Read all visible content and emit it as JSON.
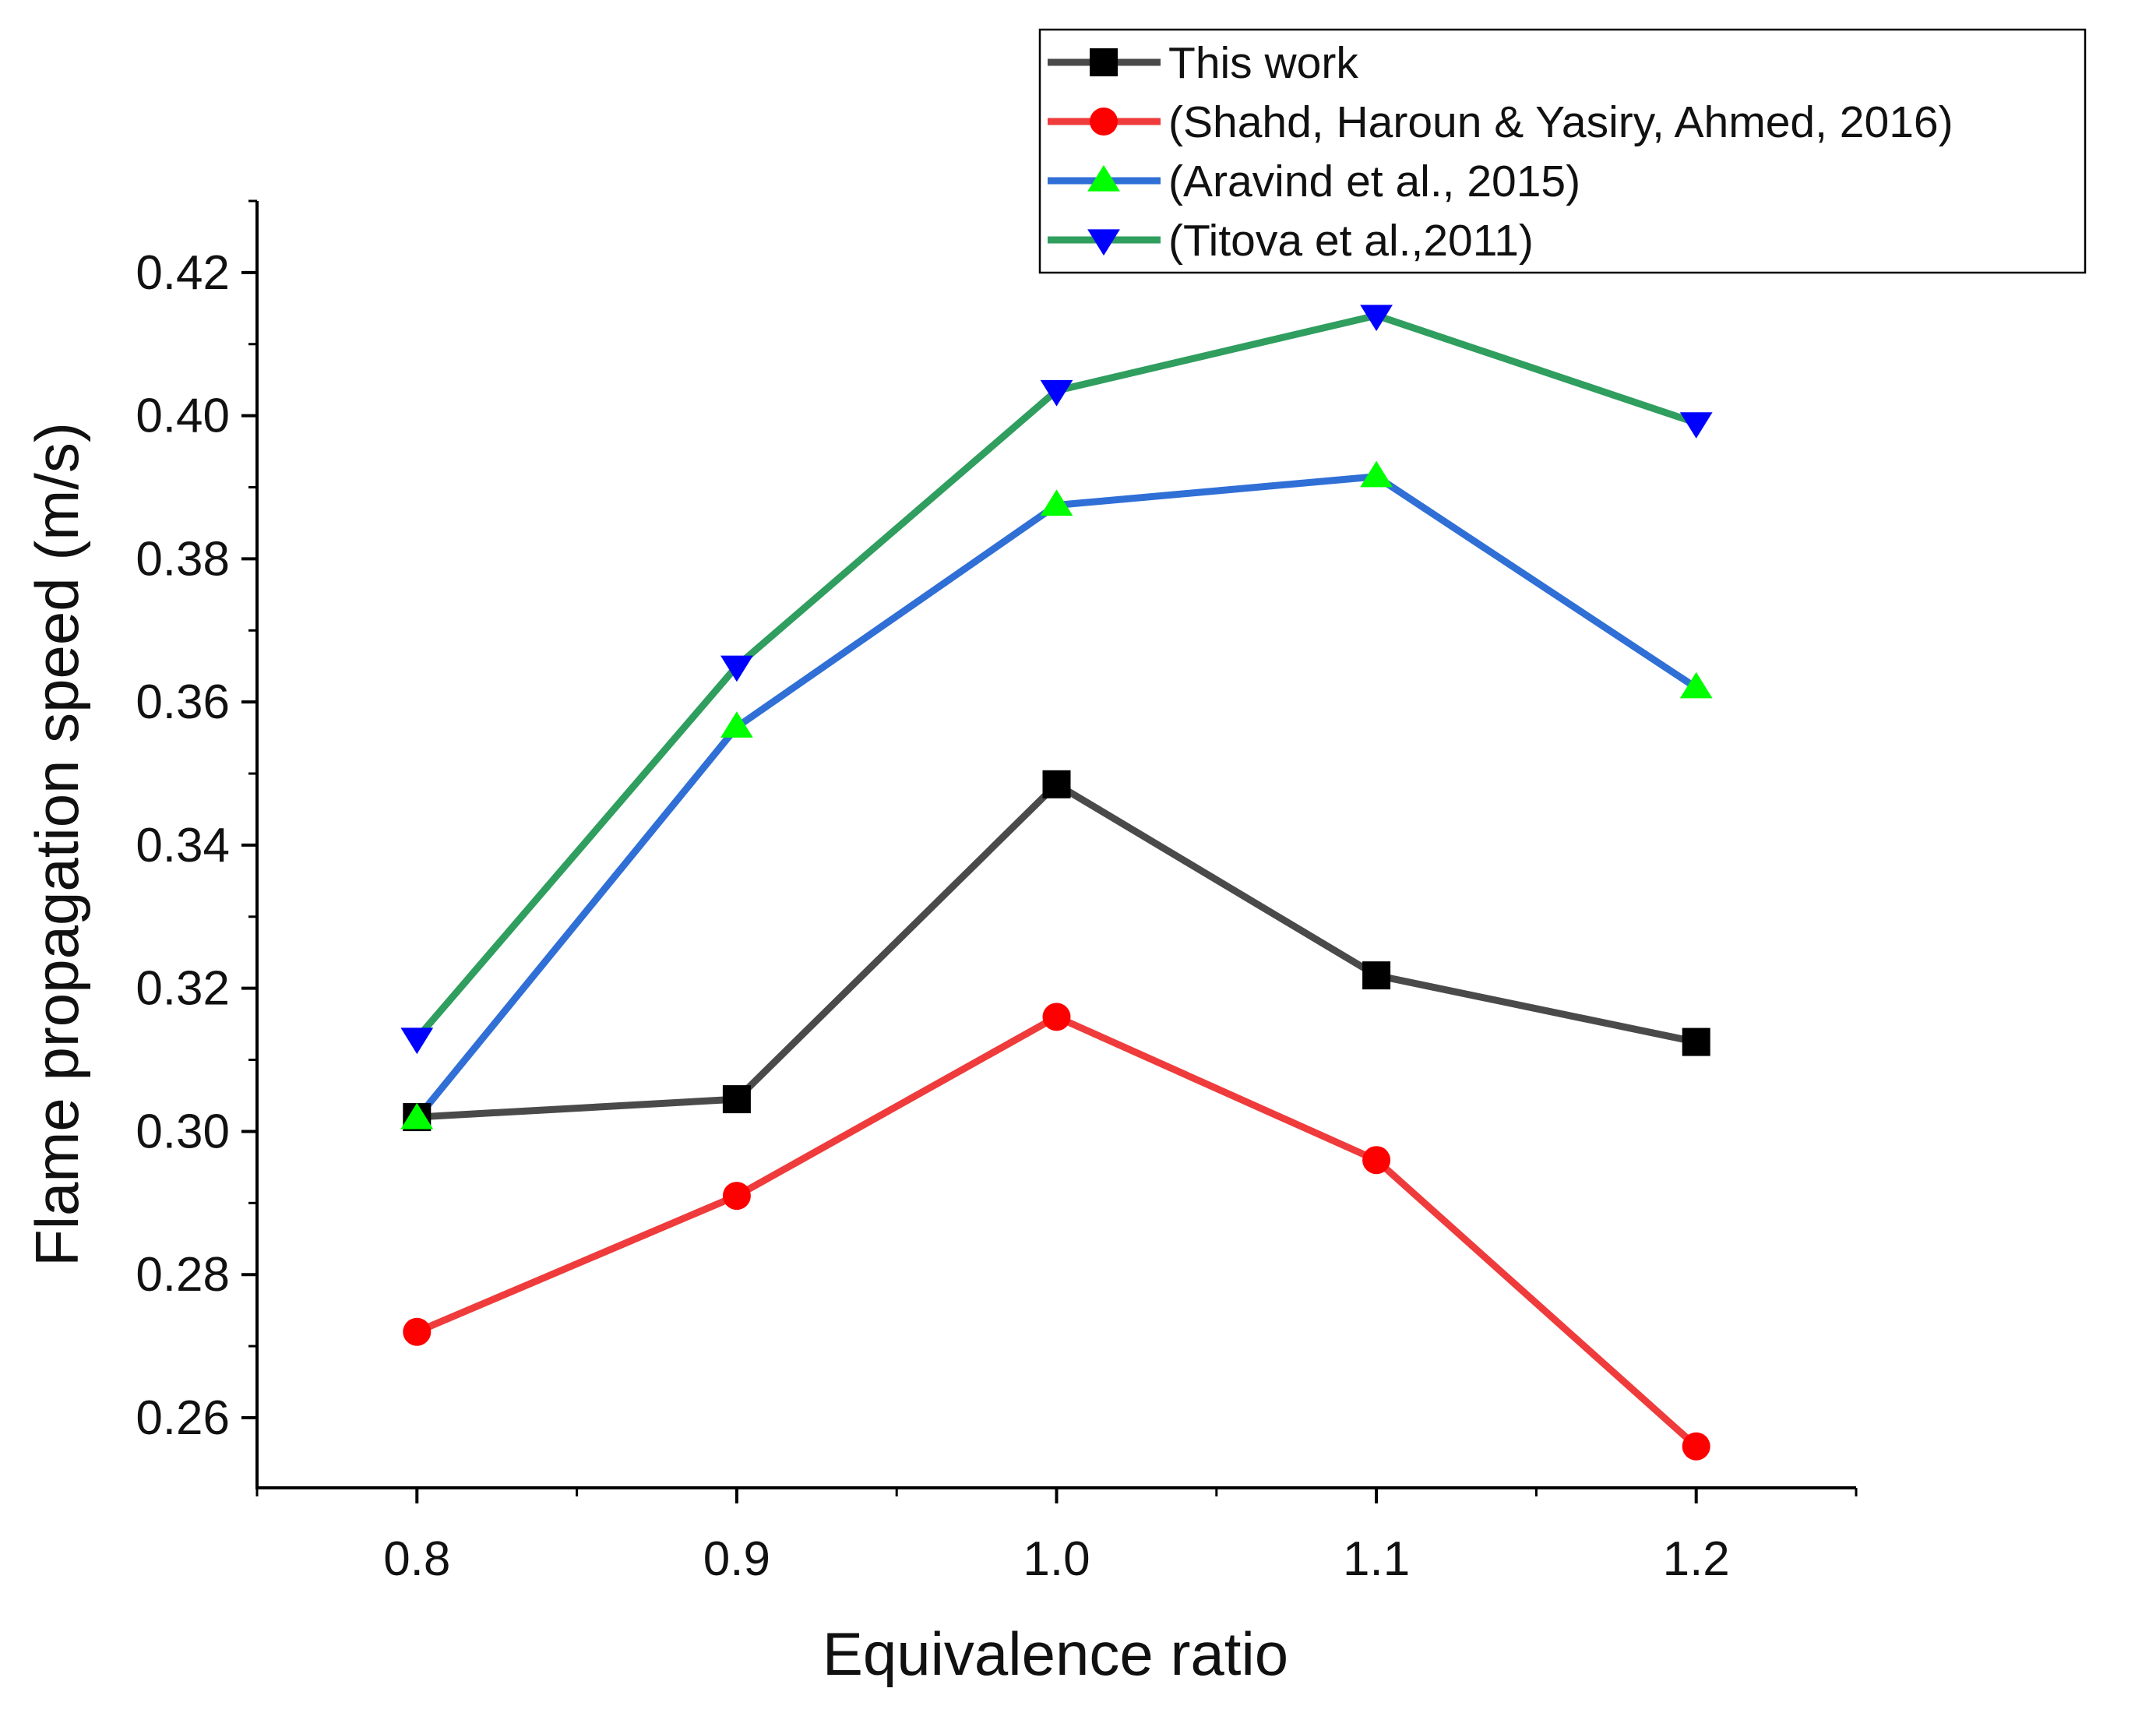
{
  "chart_data": {
    "type": "line",
    "xlabel": "Equivalence ratio",
    "ylabel": "Flame propagation speed (m/s)",
    "xlim": [
      0.75,
      1.25
    ],
    "ylim": [
      0.2502,
      0.43
    ],
    "x_ticks": [
      0.8,
      0.9,
      1.0,
      1.1,
      1.2
    ],
    "x_tick_labels": [
      "0.8",
      "0.9",
      "1.0",
      "1.1",
      "1.2"
    ],
    "y_ticks": [
      0.26,
      0.28,
      0.3,
      0.32,
      0.34,
      0.36,
      0.38,
      0.4,
      0.42
    ],
    "y_tick_labels": [
      "0.26",
      "0.28",
      "0.30",
      "0.32",
      "0.34",
      "0.36",
      "0.38",
      "0.40",
      "0.42"
    ],
    "grid": false,
    "legend_position": "top-right",
    "x": [
      0.8,
      0.9,
      1.0,
      1.1,
      1.2
    ],
    "series": [
      {
        "name": "This work",
        "color": "#4a4a4a",
        "marker": "square",
        "marker_color": "#000000",
        "values": [
          0.302,
          0.3045,
          0.3485,
          0.3218,
          0.3125
        ]
      },
      {
        "name": "(Shahd, Haroun & Yasiry, Ahmed, 2016)",
        "color": "#ef3b3b",
        "marker": "circle",
        "marker_color": "#ff0000",
        "values": [
          0.272,
          0.291,
          0.316,
          0.296,
          0.256
        ]
      },
      {
        "name": "(Aravind et al., 2015)",
        "color": "#2f6fd6",
        "marker": "triangle-up",
        "marker_color": "#00ff00",
        "values": [
          0.3018,
          0.3565,
          0.3875,
          0.3915,
          0.362
        ]
      },
      {
        "name": "(Titova et al.,2011)",
        "color": "#2f9e5e",
        "marker": "triangle-down",
        "marker_color": "#0000ff",
        "values": [
          0.313,
          0.365,
          0.4035,
          0.414,
          0.399
        ]
      }
    ]
  }
}
